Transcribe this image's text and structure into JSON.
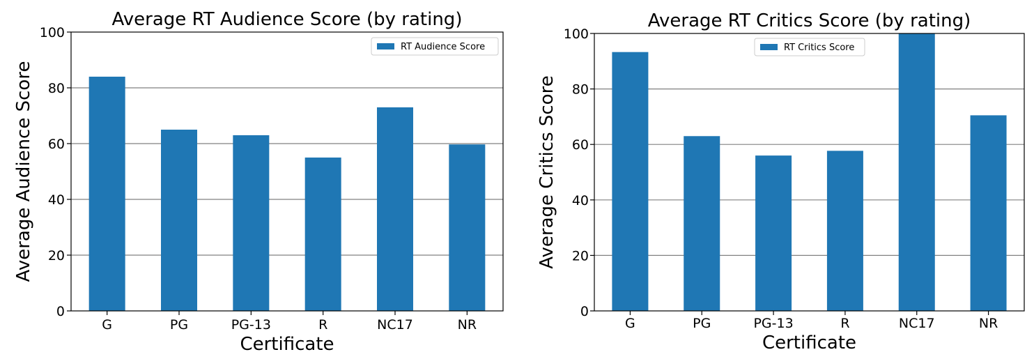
{
  "chart_data": [
    {
      "type": "bar",
      "title": "Average RT Audience Score (by rating)",
      "xlabel": "Certificate",
      "ylabel": "Average Audience Score",
      "categories": [
        "G",
        "PG",
        "PG-13",
        "R",
        "NC17",
        "NR"
      ],
      "series": [
        {
          "name": "RT Audience Score",
          "values": [
            84,
            65,
            63,
            55,
            73,
            59.7
          ],
          "color": "#1f77b4"
        }
      ],
      "ylim": [
        0,
        100
      ],
      "yticks": [
        "0",
        "20",
        "40",
        "60",
        "80",
        "100"
      ],
      "grid": "horizontal",
      "legend": "top-right"
    },
    {
      "type": "bar",
      "title": "Average RT Critics Score (by rating)",
      "xlabel": "Certificate",
      "ylabel": "Average Critics Score",
      "categories": [
        "G",
        "PG",
        "PG-13",
        "R",
        "NC17",
        "NR"
      ],
      "series": [
        {
          "name": "RT Critics Score",
          "values": [
            93.3,
            63,
            56,
            57.7,
            100,
            70.5
          ],
          "color": "#1f77b4"
        }
      ],
      "ylim": [
        0,
        100
      ],
      "yticks": [
        "0",
        "20",
        "40",
        "60",
        "80",
        "100"
      ],
      "grid": "horizontal",
      "legend": "upper-center"
    }
  ]
}
